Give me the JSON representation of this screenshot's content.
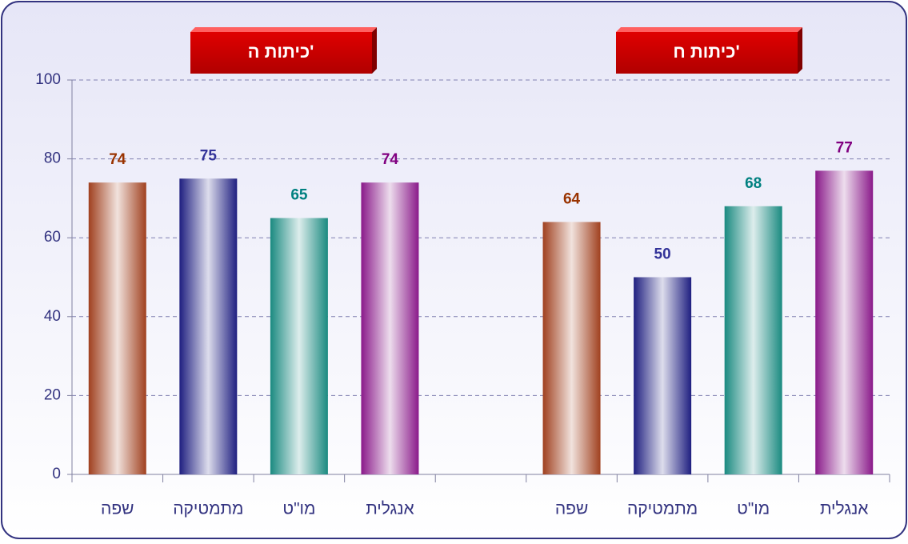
{
  "chart_data": {
    "type": "bar",
    "annotations": [
      "כיתות ה'",
      "כיתות ח'"
    ],
    "categories": [
      "שפה",
      "מתמטיקה",
      "מו\"ט",
      "אנגלית",
      null,
      "שפה",
      "מתמטיקה",
      "מו\"ט",
      "אנגלית"
    ],
    "values": [
      74,
      75,
      65,
      74,
      null,
      64,
      50,
      68,
      77
    ],
    "colors": [
      "#a0401f",
      "#1f1f80",
      "#1a8a80",
      "#8a1a8a",
      null,
      "#a0401f",
      "#1f1f80",
      "#1a8a80",
      "#8a1a8a"
    ],
    "label_colors": [
      "#993300",
      "#333399",
      "#008080",
      "#800080",
      null,
      "#993300",
      "#333399",
      "#008080",
      "#800080"
    ],
    "ylim": [
      0,
      100
    ],
    "yticks": [
      0,
      20,
      40,
      60,
      80,
      100
    ],
    "grid": true
  }
}
